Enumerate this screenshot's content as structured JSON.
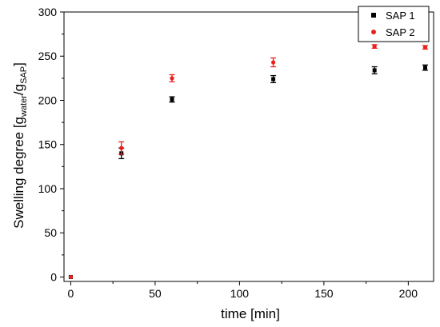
{
  "chart_data": {
    "type": "scatter",
    "xlabel": "time [min]",
    "ylabel": {
      "base": "Swelling degree [g",
      "sub1": "water",
      "mid": "/g",
      "sub2": "SAP",
      "end": "]"
    },
    "xlim": [
      -4,
      215
    ],
    "ylim": [
      -5,
      300
    ],
    "xticks": [
      0,
      50,
      100,
      150,
      200
    ],
    "yticks": [
      0,
      50,
      100,
      150,
      200,
      250,
      300
    ],
    "grid": false,
    "legend_position": "top-right",
    "series": [
      {
        "name": "SAP 1",
        "color": "#000000",
        "marker": "square",
        "points": [
          {
            "x": 0,
            "y": 0,
            "err": 0
          },
          {
            "x": 30,
            "y": 140,
            "err": 6
          },
          {
            "x": 60,
            "y": 201,
            "err": 3
          },
          {
            "x": 120,
            "y": 224,
            "err": 4
          },
          {
            "x": 180,
            "y": 234,
            "err": 4
          },
          {
            "x": 210,
            "y": 237,
            "err": 3
          }
        ]
      },
      {
        "name": "SAP 2",
        "color": "#e8211c",
        "marker": "circle",
        "points": [
          {
            "x": 0,
            "y": 0,
            "err": 0
          },
          {
            "x": 30,
            "y": 146,
            "err": 7
          },
          {
            "x": 60,
            "y": 225,
            "err": 4
          },
          {
            "x": 120,
            "y": 243,
            "err": 5
          },
          {
            "x": 180,
            "y": 261,
            "err": 2
          },
          {
            "x": 210,
            "y": 260,
            "err": 2
          }
        ]
      }
    ]
  }
}
